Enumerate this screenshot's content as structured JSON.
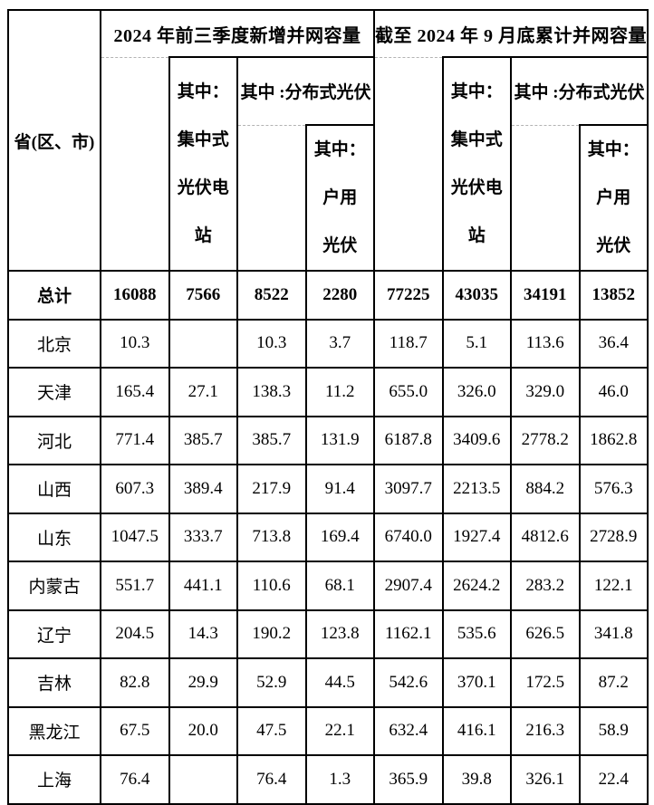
{
  "table": {
    "corner_header": "省(区、市)",
    "group1_title": "2024 年前三季度新增并网容量",
    "group2_title": "截至 2024 年 9 月底累计并网容量",
    "sub": {
      "centralized": "其中：\n集中式\n光伏电\n站",
      "distributed": "其中 :分布式光伏",
      "household": "其中：\n户用\n光伏"
    },
    "rows": [
      {
        "label": "总计",
        "bold": true,
        "cells": [
          "16088",
          "7566",
          "8522",
          "2280",
          "77225",
          "43035",
          "34191",
          "13852"
        ]
      },
      {
        "label": "北京",
        "bold": false,
        "cells": [
          "10.3",
          "",
          "10.3",
          "3.7",
          "118.7",
          "5.1",
          "113.6",
          "36.4"
        ]
      },
      {
        "label": "天津",
        "bold": false,
        "cells": [
          "165.4",
          "27.1",
          "138.3",
          "11.2",
          "655.0",
          "326.0",
          "329.0",
          "46.0"
        ]
      },
      {
        "label": "河北",
        "bold": false,
        "cells": [
          "771.4",
          "385.7",
          "385.7",
          "131.9",
          "6187.8",
          "3409.6",
          "2778.2",
          "1862.8"
        ]
      },
      {
        "label": "山西",
        "bold": false,
        "cells": [
          "607.3",
          "389.4",
          "217.9",
          "91.4",
          "3097.7",
          "2213.5",
          "884.2",
          "576.3"
        ]
      },
      {
        "label": "山东",
        "bold": false,
        "cells": [
          "1047.5",
          "333.7",
          "713.8",
          "169.4",
          "6740.0",
          "1927.4",
          "4812.6",
          "2728.9"
        ]
      },
      {
        "label": "内蒙古",
        "bold": false,
        "cells": [
          "551.7",
          "441.1",
          "110.6",
          "68.1",
          "2907.4",
          "2624.2",
          "283.2",
          "122.1"
        ]
      },
      {
        "label": "辽宁",
        "bold": false,
        "cells": [
          "204.5",
          "14.3",
          "190.2",
          "123.8",
          "1162.1",
          "535.6",
          "626.5",
          "341.8"
        ]
      },
      {
        "label": "吉林",
        "bold": false,
        "cells": [
          "82.8",
          "29.9",
          "52.9",
          "44.5",
          "542.6",
          "370.1",
          "172.5",
          "87.2"
        ]
      },
      {
        "label": "黑龙江",
        "bold": false,
        "cells": [
          "67.5",
          "20.0",
          "47.5",
          "22.1",
          "632.4",
          "416.1",
          "216.3",
          "58.9"
        ]
      },
      {
        "label": "上海",
        "bold": false,
        "cells": [
          "76.4",
          "",
          "76.4",
          "1.3",
          "365.9",
          "39.8",
          "326.1",
          "22.4"
        ]
      }
    ]
  }
}
